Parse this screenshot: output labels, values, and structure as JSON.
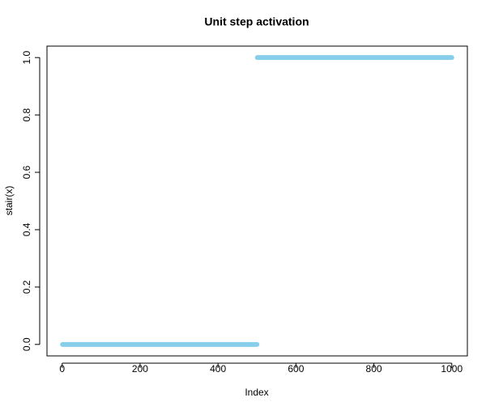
{
  "chart_data": {
    "type": "line",
    "title": "Unit step activation",
    "x_label": "Index",
    "y_label": "stair(x)",
    "x": [
      1,
      500,
      null,
      501,
      1000
    ],
    "values": [
      0,
      0,
      null,
      1,
      1
    ],
    "color": "#87ceeb",
    "xlim": [
      -38.96,
      1039.96
    ],
    "ylim": [
      -0.04,
      1.04
    ],
    "xticks": [
      0,
      200,
      400,
      600,
      800,
      1000
    ],
    "yticks": [
      {
        "value": 0,
        "label": "0.0"
      },
      {
        "value": 0.2,
        "label": "0.2"
      },
      {
        "value": 0.4,
        "label": "0.4"
      },
      {
        "value": 0.6,
        "label": "0.6"
      },
      {
        "value": 0.8,
        "label": "0.8"
      },
      {
        "value": 1,
        "label": "1.0"
      }
    ]
  }
}
